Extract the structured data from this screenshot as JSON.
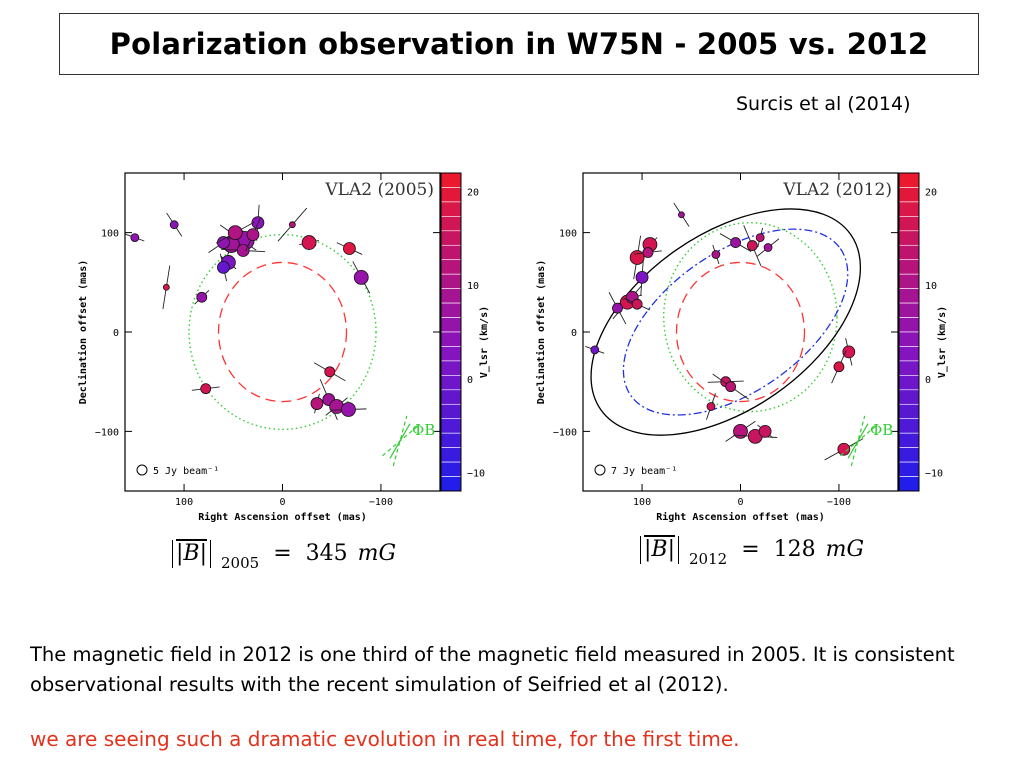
{
  "header": {
    "title": "Polarization observation in W75N - 2005 vs. 2012",
    "citation": "Surcis et al (2014)"
  },
  "colors": {
    "title_border": "#333333",
    "highlight": "#e3321b",
    "ellipse_dashed": "#ff3333",
    "ellipse_dotted": "#33cc33",
    "ellipse_fit": "#000000",
    "ellipse_dashdot": "#2233dd"
  },
  "chart_data": [
    {
      "type": "scatter",
      "title": "VLA2 (2005)",
      "xlabel": "Right Ascension offset (mas)",
      "ylabel": "Declination offset (mas)",
      "xlim": [
        160,
        -160
      ],
      "ylim": [
        -160,
        160
      ],
      "xticks": [
        100,
        0,
        -100
      ],
      "yticks": [
        100,
        0,
        -100
      ],
      "colorbar": {
        "label": "V_lsr (km/s)",
        "range": [
          -12,
          22
        ],
        "ticks": [
          20,
          10,
          0,
          -10
        ]
      },
      "beam_label": "5 Jy beam⁻¹",
      "phi_label": "ΦB",
      "field_label": "|B|",
      "field_year": "2005",
      "field_value": "345",
      "field_unit": "mG",
      "ellipses": [
        {
          "style": "dashed",
          "cx": 0,
          "cy": 0,
          "rx": 65,
          "ry": 70,
          "angle": 0
        },
        {
          "style": "dotted",
          "cx": 0,
          "cy": 0,
          "rx": 95,
          "ry": 98,
          "angle": 0
        }
      ],
      "points": [
        {
          "x": 150,
          "y": 95,
          "s": 4,
          "v": 5
        },
        {
          "x": 110,
          "y": 108,
          "s": 4,
          "v": 4
        },
        {
          "x": 25,
          "y": 110,
          "s": 6,
          "v": 4
        },
        {
          "x": -10,
          "y": 108,
          "s": 3,
          "v": 12
        },
        {
          "x": -27,
          "y": 90,
          "s": 7,
          "v": 17
        },
        {
          "x": -68,
          "y": 84,
          "s": 6,
          "v": 19
        },
        {
          "x": -80,
          "y": 55,
          "s": 7,
          "v": 6
        },
        {
          "x": 118,
          "y": 45,
          "s": 3,
          "v": 18
        },
        {
          "x": 82,
          "y": 35,
          "s": 5,
          "v": 6
        },
        {
          "x": 78,
          "y": -57,
          "s": 5,
          "v": 17
        },
        {
          "x": -48,
          "y": -40,
          "s": 5,
          "v": 17
        },
        {
          "x": -47,
          "y": -68,
          "s": 6,
          "v": 8
        },
        {
          "x": -35,
          "y": -72,
          "s": 6,
          "v": 12
        },
        {
          "x": -55,
          "y": -75,
          "s": 7,
          "v": 9
        },
        {
          "x": -67,
          "y": -78,
          "s": 7,
          "v": 6
        },
        {
          "x": 45,
          "y": 95,
          "s": 8,
          "v": 7
        },
        {
          "x": 38,
          "y": 92,
          "s": 9,
          "v": 6
        },
        {
          "x": 52,
          "y": 88,
          "s": 8,
          "v": 8
        },
        {
          "x": 60,
          "y": 90,
          "s": 6,
          "v": 5
        },
        {
          "x": 40,
          "y": 82,
          "s": 6,
          "v": 9
        },
        {
          "x": 55,
          "y": 70,
          "s": 7,
          "v": 2
        },
        {
          "x": 60,
          "y": 65,
          "s": 6,
          "v": -2
        },
        {
          "x": 30,
          "y": 98,
          "s": 6,
          "v": 10
        },
        {
          "x": 48,
          "y": 100,
          "s": 7,
          "v": 11
        }
      ]
    },
    {
      "type": "scatter",
      "title": "VLA2 (2012)",
      "xlabel": "Right Ascension offset (mas)",
      "ylabel": "Declination offset (mas)",
      "xlim": [
        160,
        -160
      ],
      "ylim": [
        -160,
        160
      ],
      "xticks": [
        100,
        0,
        -100
      ],
      "yticks": [
        100,
        0,
        -100
      ],
      "colorbar": {
        "label": "V_lsr (km/s)",
        "range": [
          -12,
          22
        ],
        "ticks": [
          20,
          10,
          0,
          -10
        ]
      },
      "beam_label": "7 Jy beam⁻¹",
      "phi_label": "ΦB",
      "field_label": "|B|",
      "field_year": "2012",
      "field_value": "128",
      "field_unit": "mG",
      "ellipses": [
        {
          "style": "dashed",
          "cx": 0,
          "cy": 0,
          "rx": 65,
          "ry": 70,
          "angle": 0
        },
        {
          "style": "dotted",
          "cx": -10,
          "cy": 15,
          "rx": 88,
          "ry": 95,
          "angle": 0
        },
        {
          "style": "solid",
          "cx": 15,
          "cy": 10,
          "rx": 155,
          "ry": 88,
          "angle": -35
        },
        {
          "style": "dashdot",
          "cx": 5,
          "cy": 10,
          "rx": 130,
          "ry": 70,
          "angle": -35
        }
      ],
      "points": [
        {
          "x": 148,
          "y": -18,
          "s": 4,
          "v": 0
        },
        {
          "x": 60,
          "y": 118,
          "s": 3,
          "v": 8
        },
        {
          "x": 100,
          "y": 55,
          "s": 6,
          "v": 2
        },
        {
          "x": 115,
          "y": 30,
          "s": 7,
          "v": 17
        },
        {
          "x": 110,
          "y": 35,
          "s": 6,
          "v": 10
        },
        {
          "x": 105,
          "y": 28,
          "s": 5,
          "v": 16
        },
        {
          "x": 125,
          "y": 24,
          "s": 5,
          "v": 6
        },
        {
          "x": 105,
          "y": 75,
          "s": 7,
          "v": 18
        },
        {
          "x": 92,
          "y": 88,
          "s": 7,
          "v": 17
        },
        {
          "x": 94,
          "y": 80,
          "s": 5,
          "v": 12
        },
        {
          "x": 5,
          "y": 90,
          "s": 5,
          "v": 7
        },
        {
          "x": -12,
          "y": 87,
          "s": 5,
          "v": 16
        },
        {
          "x": -20,
          "y": 95,
          "s": 4,
          "v": 13
        },
        {
          "x": -28,
          "y": 85,
          "s": 4,
          "v": 8
        },
        {
          "x": 15,
          "y": -50,
          "s": 5,
          "v": 15
        },
        {
          "x": 10,
          "y": -55,
          "s": 5,
          "v": 13
        },
        {
          "x": 25,
          "y": 78,
          "s": 4,
          "v": 10
        },
        {
          "x": 30,
          "y": -75,
          "s": 4,
          "v": 16
        },
        {
          "x": 0,
          "y": -100,
          "s": 7,
          "v": 12
        },
        {
          "x": -15,
          "y": -105,
          "s": 7,
          "v": 15
        },
        {
          "x": -25,
          "y": -100,
          "s": 6,
          "v": 15
        },
        {
          "x": -110,
          "y": -20,
          "s": 6,
          "v": 17
        },
        {
          "x": -100,
          "y": -35,
          "s": 5,
          "v": 18
        },
        {
          "x": -105,
          "y": -118,
          "s": 6,
          "v": 17
        }
      ]
    }
  ],
  "text": {
    "paragraph": "The magnetic field in 2012 is one third of the magnetic field measured in 2005. It is consistent observational results with the recent simulation of Seifried et al (2012).",
    "highlight": "we are seeing such a dramatic evolution in real time, for the first time."
  }
}
